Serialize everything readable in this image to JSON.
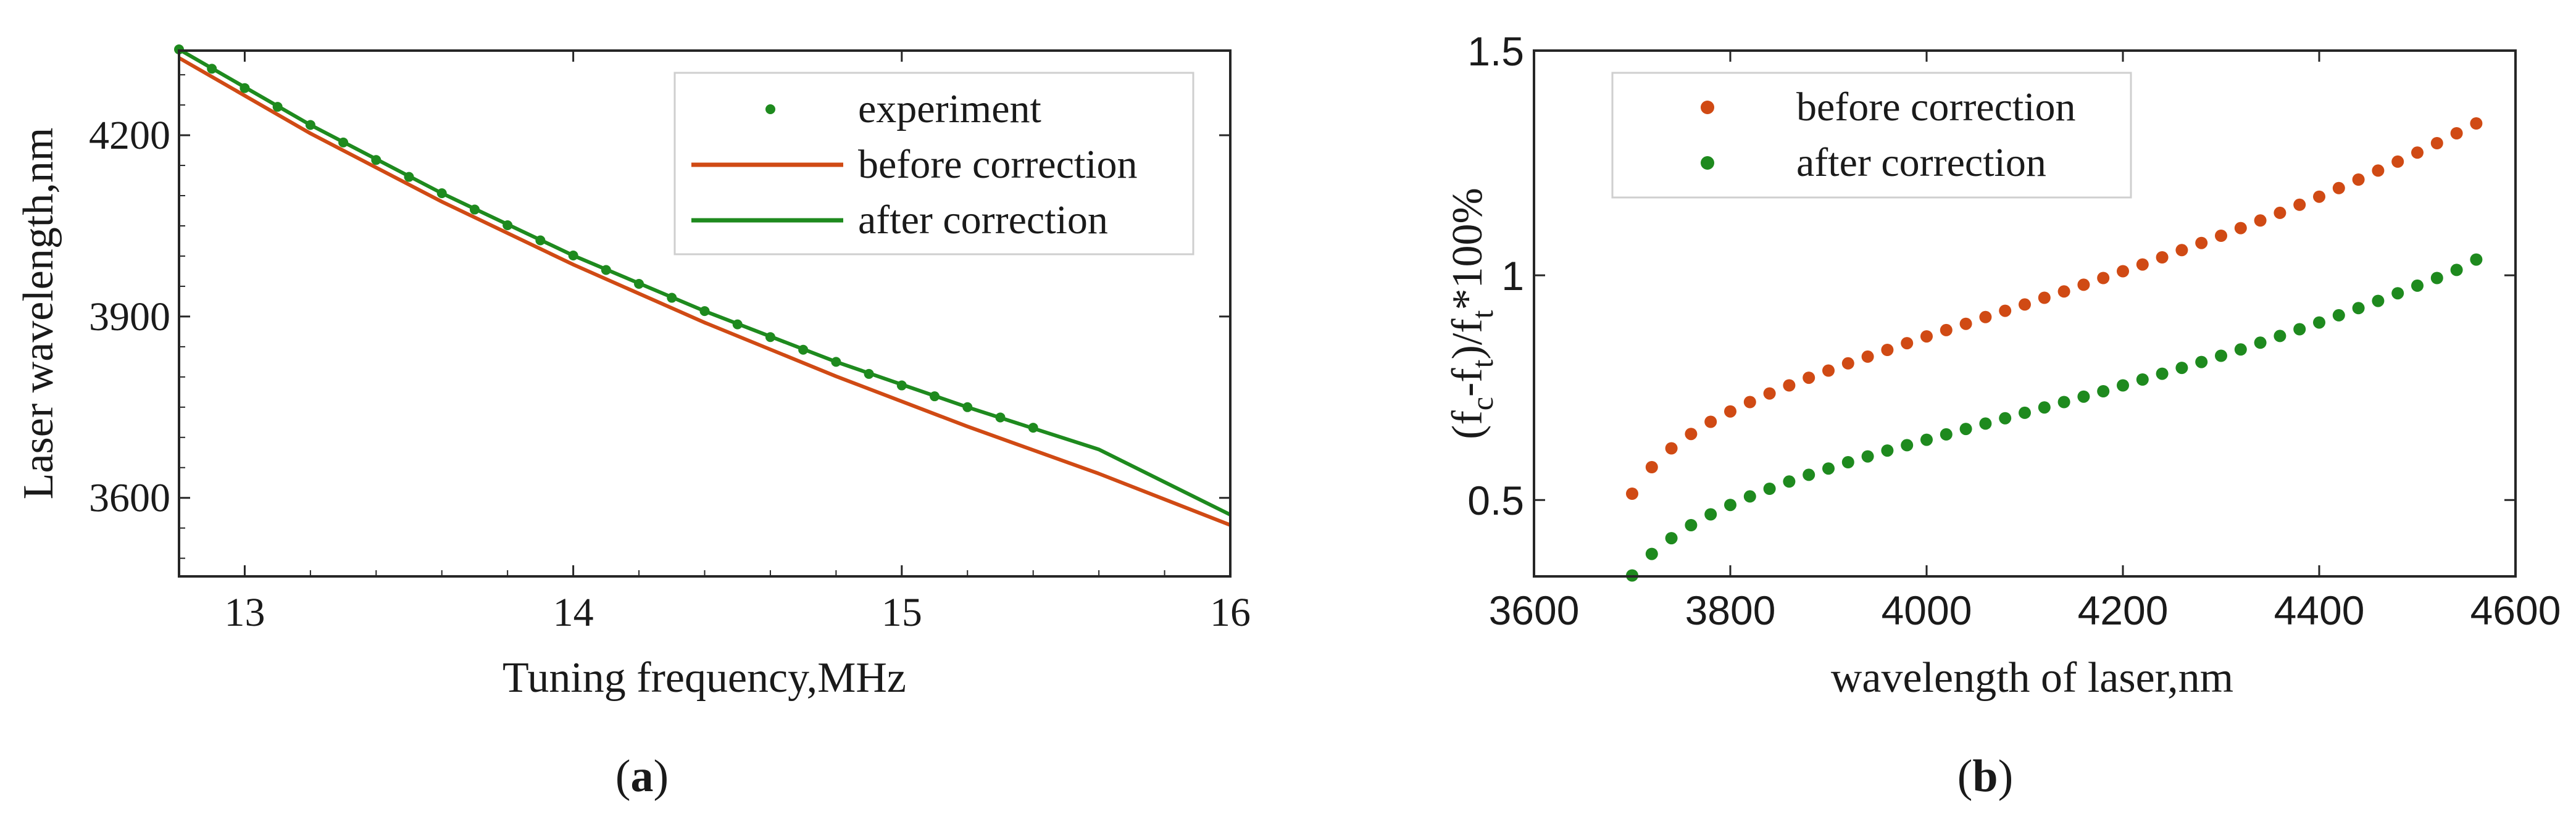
{
  "chart_data": [
    {
      "type": "line",
      "panel_label": "a",
      "xlabel": "Tuning frequency,MHz",
      "ylabel": "Laser wavelength,nm",
      "xlim": [
        12.8,
        16.0
      ],
      "ylim": [
        3470,
        4340
      ],
      "xticks": [
        13,
        14,
        15,
        16
      ],
      "yticks": [
        3600,
        3900,
        4200
      ],
      "legend_position": "top-right",
      "series": [
        {
          "name": "experiment",
          "style": "markers",
          "color": "#1e8a1e",
          "x": [
            12.8,
            12.9,
            13.0,
            13.1,
            13.2,
            13.3,
            13.4,
            13.5,
            13.6,
            13.7,
            13.8,
            13.9,
            14.0,
            14.1,
            14.2,
            14.3,
            14.4,
            14.5,
            14.6,
            14.7,
            14.8,
            14.9,
            15.0,
            15.1,
            15.2,
            15.3,
            15.4
          ],
          "y": [
            4342,
            4310,
            4278,
            4247,
            4217,
            4188,
            4159,
            4131,
            4104,
            4077,
            4051,
            4026,
            4001,
            3977,
            3954,
            3931,
            3909,
            3887,
            3866,
            3845,
            3825,
            3805,
            3786,
            3768,
            3750,
            3733,
            3716
          ]
        },
        {
          "name": "before correction",
          "style": "line",
          "color": "#d04a14",
          "x": [
            12.8,
            13.2,
            13.6,
            14.0,
            14.4,
            14.8,
            15.2,
            15.6,
            16.0
          ],
          "y": [
            4328,
            4203,
            4090,
            3986,
            3890,
            3801,
            3718,
            3640,
            3555
          ]
        },
        {
          "name": "after correction",
          "style": "line",
          "color": "#1e8a1e",
          "x": [
            12.8,
            13.2,
            13.6,
            14.0,
            14.4,
            14.8,
            15.2,
            15.6,
            16.0
          ],
          "y": [
            4342,
            4217,
            4104,
            4001,
            3909,
            3825,
            3750,
            3680,
            3572
          ]
        }
      ]
    },
    {
      "type": "scatter",
      "panel_label": "b",
      "xlabel": "wavelength of laser,nm",
      "ylabel_parts": [
        "(f",
        "c",
        "-f",
        "t",
        ")/f",
        "t",
        "*100%"
      ],
      "xlim": [
        3600,
        4600
      ],
      "ylim": [
        0.33,
        1.5
      ],
      "xticks": [
        3600,
        3800,
        4000,
        4200,
        4400,
        4600
      ],
      "yticks": [
        0.5,
        1,
        1.5
      ],
      "ytick_labels": [
        "0.5",
        "1",
        "1.5"
      ],
      "legend_position": "top-left",
      "series": [
        {
          "name": "before correction",
          "color": "#d04a14",
          "x": [
            3700,
            3720,
            3740,
            3760,
            3780,
            3800,
            3820,
            3840,
            3860,
            3880,
            3900,
            3920,
            3940,
            3960,
            3980,
            4000,
            4020,
            4040,
            4060,
            4080,
            4100,
            4120,
            4140,
            4160,
            4180,
            4200,
            4220,
            4240,
            4260,
            4280,
            4300,
            4320,
            4340,
            4360,
            4380,
            4400,
            4420,
            4440,
            4460,
            4480,
            4500,
            4520,
            4540,
            4560
          ],
          "y": [
            0.514,
            0.573,
            0.615,
            0.647,
            0.674,
            0.697,
            0.718,
            0.737,
            0.755,
            0.772,
            0.788,
            0.804,
            0.819,
            0.834,
            0.849,
            0.864,
            0.878,
            0.892,
            0.907,
            0.921,
            0.935,
            0.95,
            0.964,
            0.979,
            0.994,
            1.009,
            1.024,
            1.04,
            1.056,
            1.072,
            1.088,
            1.105,
            1.122,
            1.139,
            1.157,
            1.175,
            1.194,
            1.213,
            1.233,
            1.253,
            1.273,
            1.294,
            1.316,
            1.338
          ]
        },
        {
          "name": "after correction",
          "color": "#1e8a1e",
          "x": [
            3700,
            3720,
            3740,
            3760,
            3780,
            3800,
            3820,
            3840,
            3860,
            3880,
            3900,
            3920,
            3940,
            3960,
            3980,
            4000,
            4020,
            4040,
            4060,
            4080,
            4100,
            4120,
            4140,
            4160,
            4180,
            4200,
            4220,
            4240,
            4260,
            4280,
            4300,
            4320,
            4340,
            4360,
            4380,
            4400,
            4420,
            4440,
            4460,
            4480,
            4500,
            4520,
            4540,
            4560
          ],
          "y": [
            0.332,
            0.38,
            0.415,
            0.444,
            0.468,
            0.489,
            0.508,
            0.525,
            0.541,
            0.556,
            0.57,
            0.584,
            0.597,
            0.61,
            0.622,
            0.634,
            0.646,
            0.658,
            0.67,
            0.682,
            0.694,
            0.706,
            0.718,
            0.73,
            0.742,
            0.755,
            0.768,
            0.781,
            0.794,
            0.807,
            0.821,
            0.835,
            0.85,
            0.865,
            0.88,
            0.895,
            0.911,
            0.927,
            0.943,
            0.96,
            0.977,
            0.994,
            1.012,
            1.035
          ]
        }
      ]
    }
  ]
}
